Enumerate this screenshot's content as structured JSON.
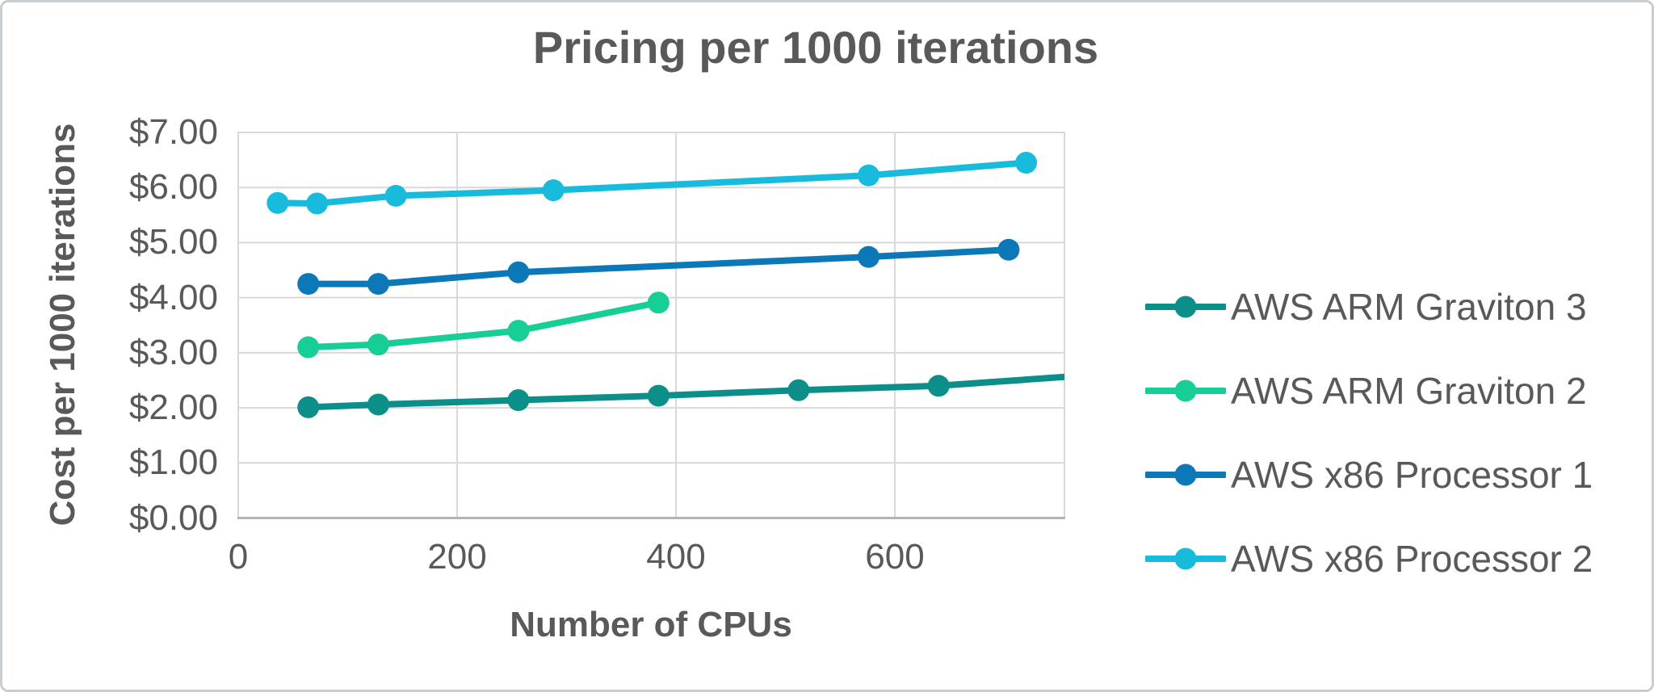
{
  "chart_data": {
    "type": "line",
    "title": "Pricing per 1000 iterations",
    "xlabel": "Number of CPUs",
    "ylabel": "Cost per 1000 iterations",
    "xlim": [
      0,
      755
    ],
    "ylim": [
      0,
      7
    ],
    "grid": true,
    "legend_position": "right",
    "x_ticks": [
      0,
      200,
      400,
      600
    ],
    "y_ticks": [
      {
        "value": 0,
        "label": "$0.00"
      },
      {
        "value": 1,
        "label": "$1.00"
      },
      {
        "value": 2,
        "label": "$2.00"
      },
      {
        "value": 3,
        "label": "$3.00"
      },
      {
        "value": 4,
        "label": "$4.00"
      },
      {
        "value": 5,
        "label": "$5.00"
      },
      {
        "value": 6,
        "label": "$6.00"
      },
      {
        "value": 7,
        "label": "$7.00"
      }
    ],
    "series": [
      {
        "name": "AWS ARM Graviton 3",
        "color": "#0d8f89",
        "points": [
          [
            64,
            2.01
          ],
          [
            128,
            2.06
          ],
          [
            256,
            2.14
          ],
          [
            384,
            2.22
          ],
          [
            512,
            2.32
          ],
          [
            640,
            2.4
          ],
          [
            768,
            2.58
          ]
        ]
      },
      {
        "name": "AWS ARM Graviton 2",
        "color": "#17ce97",
        "points": [
          [
            64,
            3.1
          ],
          [
            128,
            3.15
          ],
          [
            256,
            3.4
          ],
          [
            384,
            3.91
          ]
        ]
      },
      {
        "name": "AWS x86 Processor 1",
        "color": "#0c78b8",
        "points": [
          [
            64,
            4.25
          ],
          [
            128,
            4.25
          ],
          [
            256,
            4.46
          ],
          [
            576,
            4.74
          ],
          [
            704,
            4.87
          ]
        ]
      },
      {
        "name": "AWS x86 Processor 2",
        "color": "#18bbdc",
        "points": [
          [
            36,
            5.72
          ],
          [
            72,
            5.71
          ],
          [
            144,
            5.85
          ],
          [
            288,
            5.95
          ],
          [
            576,
            6.22
          ],
          [
            720,
            6.45
          ]
        ]
      }
    ]
  },
  "colors": {
    "text": "#595959",
    "gridline": "#d9d9d9",
    "axis_line": "#b3b3b3",
    "frame_border": "#c9cdd0"
  }
}
